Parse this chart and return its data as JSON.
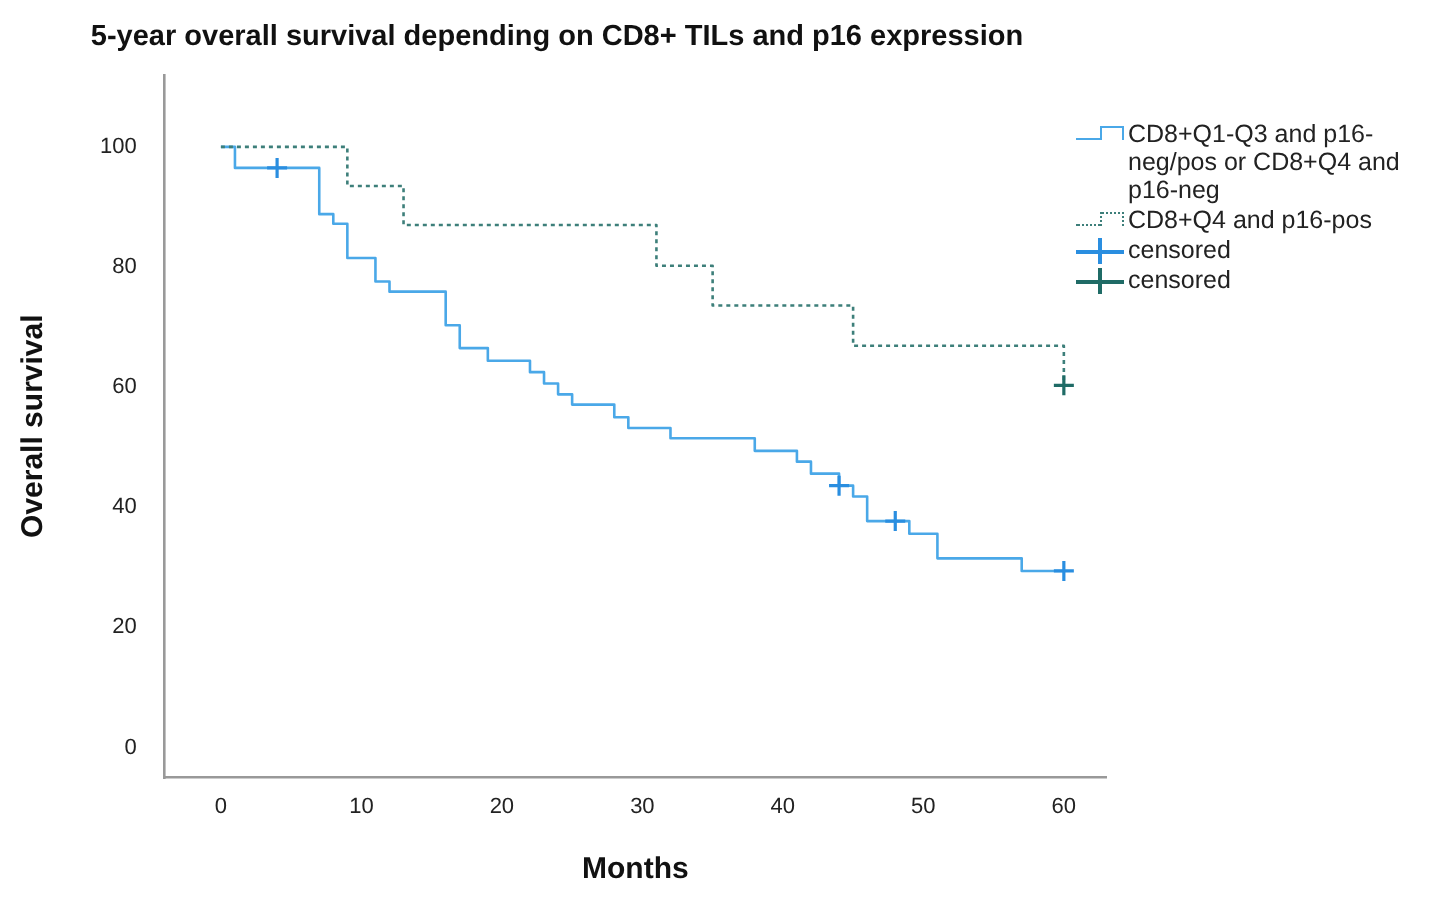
{
  "chart_data": {
    "type": "step",
    "title": "5-year overall survival depending on CD8+ TILs and p16 expression",
    "xlabel": "Months",
    "ylabel": "Overall survival",
    "xlim": [
      -4,
      63
    ],
    "ylim": [
      -5,
      112
    ],
    "xticks": [
      0,
      10,
      20,
      30,
      40,
      50,
      60
    ],
    "yticks": [
      0,
      20,
      40,
      60,
      80,
      100
    ],
    "grid": false,
    "legend": "right",
    "series": [
      {
        "name": "CD8+Q1-Q3 and p16-neg/pos or CD8+Q4 and p16-neg",
        "type": "step",
        "color": "#4aa8e8",
        "line_style": "solid",
        "x": [
          0,
          1,
          7,
          8,
          9,
          11,
          12,
          16,
          17,
          19,
          22,
          23,
          24,
          25,
          28,
          29,
          32,
          38,
          41,
          42,
          44,
          45,
          46,
          49,
          51,
          57,
          60
        ],
        "values": [
          100,
          96.5,
          88.8,
          87.2,
          81.5,
          77.6,
          75.9,
          70.3,
          66.5,
          64.4,
          62.5,
          60.6,
          58.8,
          57.1,
          55.0,
          53.2,
          51.5,
          49.4,
          47.6,
          45.6,
          43.6,
          41.8,
          37.7,
          35.6,
          31.5,
          29.4,
          29.4
        ]
      },
      {
        "name": "CD8+Q4 and p16-pos",
        "type": "step",
        "color": "#3d7f7a",
        "line_style": "dotted",
        "x": [
          0,
          9,
          13,
          31,
          35,
          45,
          60
        ],
        "values": [
          100,
          93.5,
          87.0,
          80.2,
          73.6,
          66.9,
          60.3
        ]
      },
      {
        "name": "censored",
        "type": "scatter",
        "color": "#2a8ee0",
        "marker": "cross",
        "x": [
          4,
          44,
          48,
          60
        ],
        "values": [
          96.5,
          43.6,
          37.7,
          29.4
        ]
      },
      {
        "name": "censored",
        "type": "scatter",
        "color": "#1f6b66",
        "marker": "cross",
        "x": [
          60
        ],
        "values": [
          60.3
        ]
      }
    ]
  }
}
